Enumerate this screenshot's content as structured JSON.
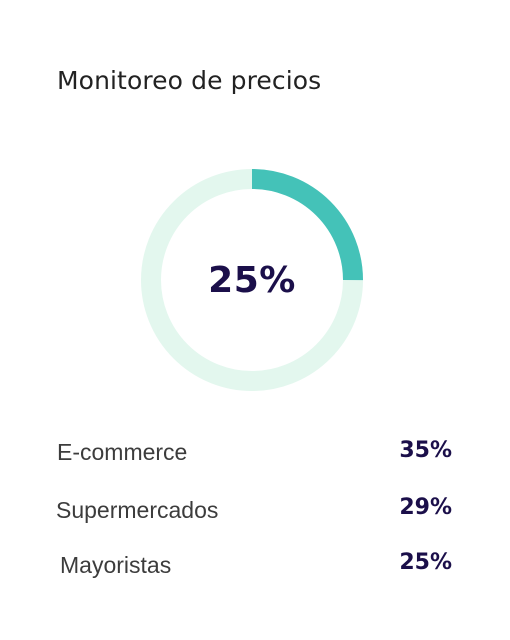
{
  "card": {
    "title": "Monitoreo de precios"
  },
  "donut": {
    "center_label": "25%",
    "value_fraction": 0.25,
    "track_color": "#e3f7ee",
    "fill_color": "#44c2b8"
  },
  "breakdown": [
    {
      "label": "E-commerce",
      "value": "35%"
    },
    {
      "label": "Supermercados",
      "value": "29%"
    },
    {
      "label": "Mayoristas",
      "value": "25%"
    }
  ]
}
